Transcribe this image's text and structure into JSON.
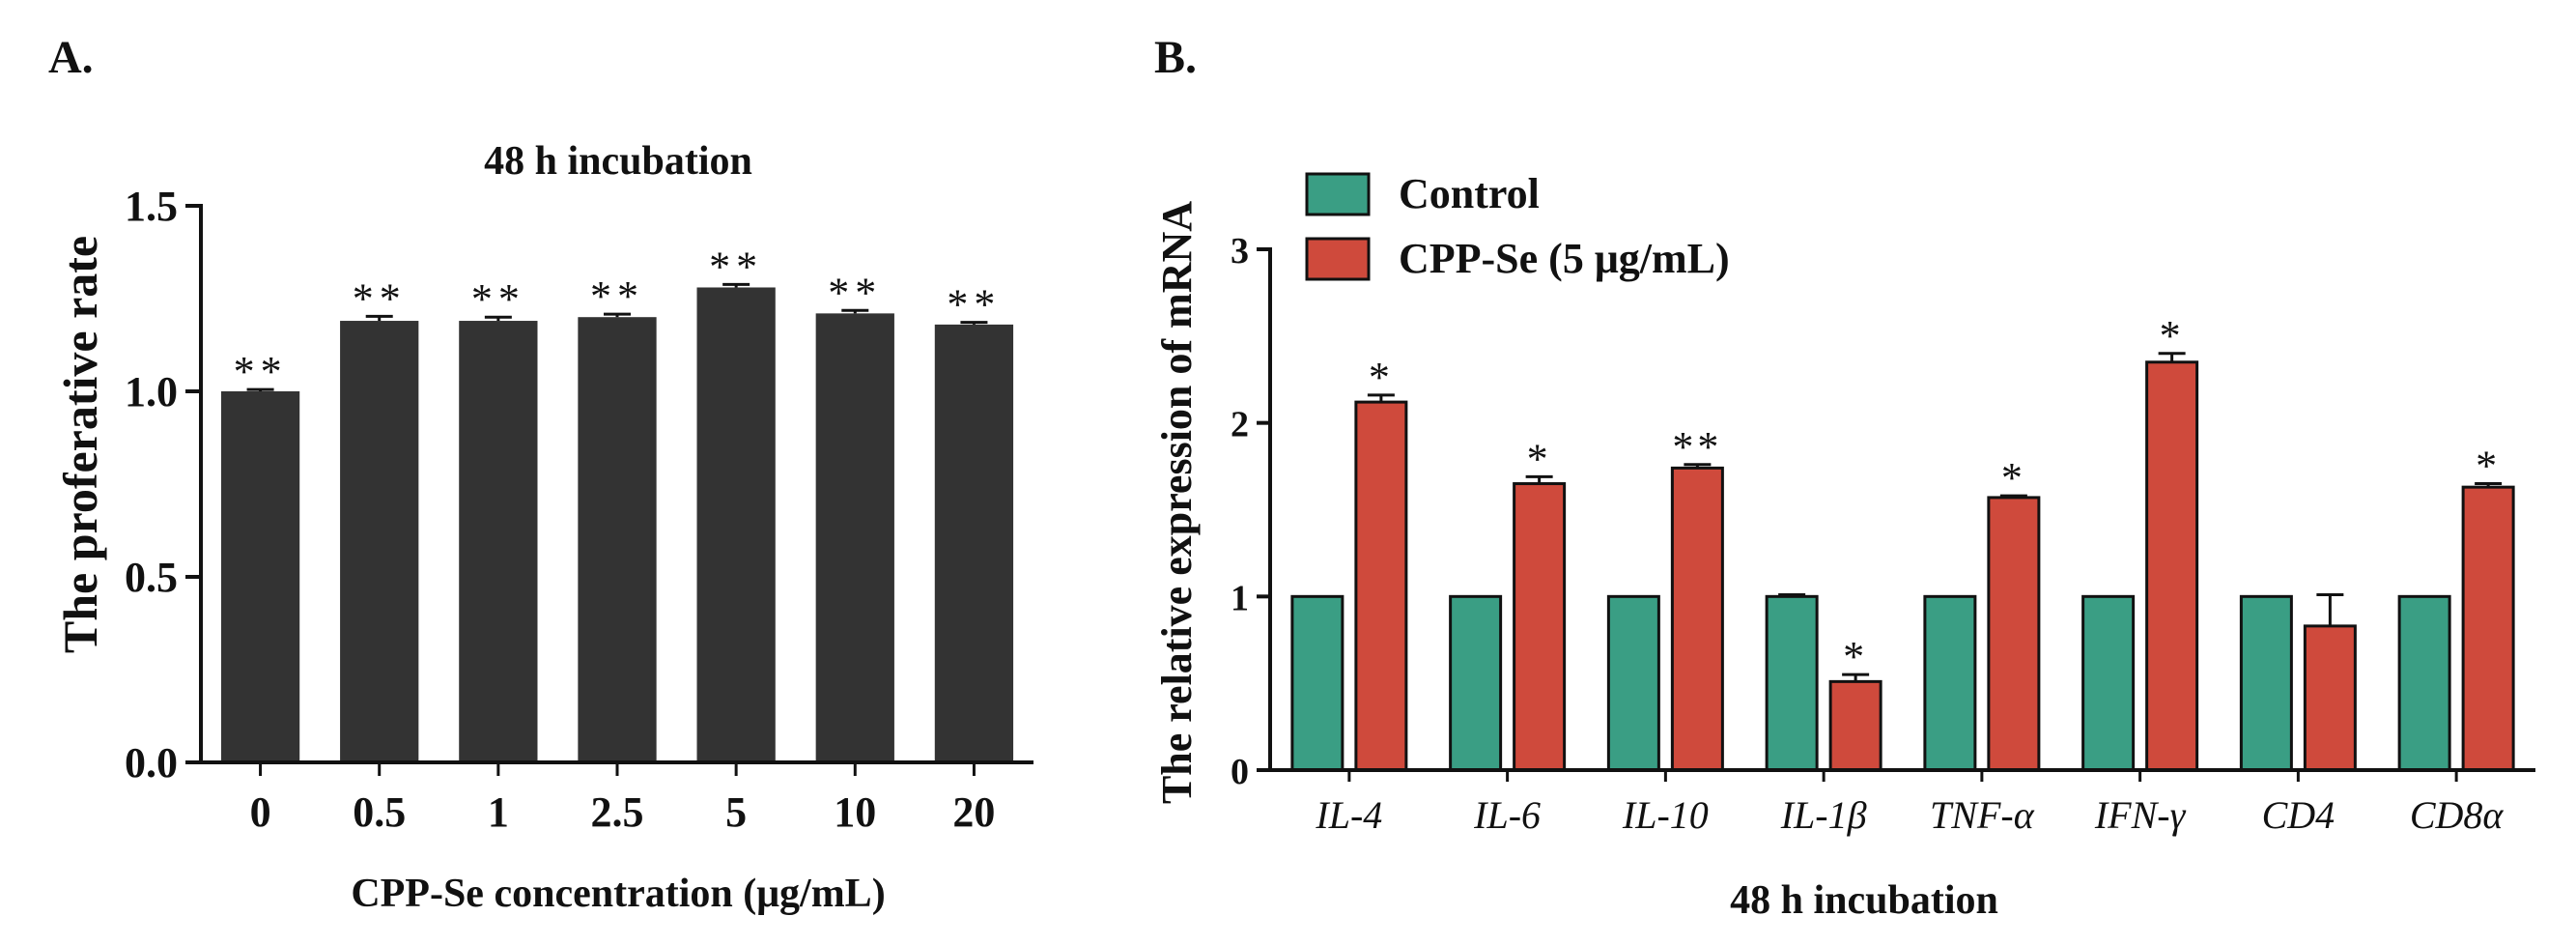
{
  "chart_data": [
    {
      "panel": "A.",
      "type": "bar",
      "title": "48 h incubation",
      "xlabel": "CPP-Se concentration (μg/mL)",
      "ylabel": "The proferative rate",
      "ylim": [
        0,
        1.5
      ],
      "yticks": [
        "0.0",
        "0.5",
        "1.0",
        "1.5"
      ],
      "categories": [
        "0",
        "0.5",
        "1",
        "2.5",
        "5",
        "10",
        "20"
      ],
      "values": [
        1.0,
        1.19,
        1.19,
        1.2,
        1.28,
        1.21,
        1.18
      ],
      "errors": [
        0.005,
        0.012,
        0.01,
        0.008,
        0.008,
        0.008,
        0.006
      ],
      "annotations": [
        "**",
        "**",
        "**",
        "**",
        "**",
        "**",
        "**"
      ],
      "bar_color": "#333333"
    },
    {
      "panel": "B.",
      "type": "bar",
      "title": "",
      "xlabel": "48 h incubation",
      "ylabel": "The relative expression of mRNA",
      "ylim": [
        0,
        3
      ],
      "yticks": [
        "0",
        "1",
        "2",
        "3"
      ],
      "categories": [
        "IL-4",
        "IL-6",
        "IL-10",
        "IL-1β",
        "TNF-α",
        "IFN-γ",
        "CD4",
        "CD8α"
      ],
      "series": [
        {
          "name": "Control",
          "color": "#3a9e84",
          "values": [
            1,
            1,
            1,
            1,
            1,
            1,
            1,
            1
          ],
          "errors": [
            0,
            0,
            0,
            0.01,
            0,
            0,
            0,
            0
          ]
        },
        {
          "name": "CPP-Se (5 μg/mL)",
          "color": "#cf4a3c",
          "values": [
            2.12,
            1.65,
            1.74,
            0.51,
            1.57,
            2.35,
            0.83,
            1.63
          ],
          "errors": [
            0.04,
            0.04,
            0.02,
            0.04,
            0.01,
            0.05,
            0.18,
            0.02
          ]
        }
      ],
      "annotations": [
        "*",
        "*",
        "**",
        "*",
        "*",
        "*",
        "",
        "*"
      ],
      "legend_position": "top-left"
    }
  ]
}
